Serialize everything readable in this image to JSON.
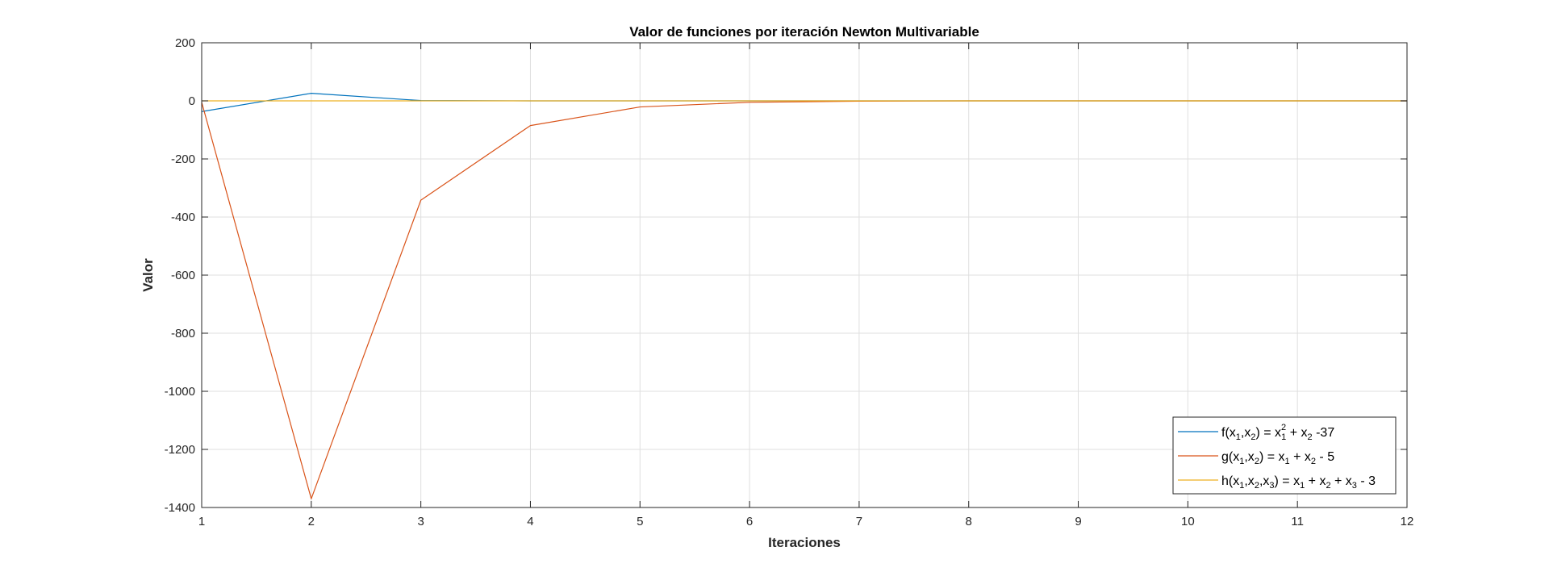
{
  "chart_data": {
    "type": "line",
    "title": "Valor de funciones por iteración Newton Multivariable",
    "xlabel": "Iteraciones",
    "ylabel": "Valor",
    "xlim": [
      1,
      12
    ],
    "ylim": [
      -1400,
      200
    ],
    "x_ticks": [
      1,
      2,
      3,
      4,
      5,
      6,
      7,
      8,
      9,
      10,
      11,
      12
    ],
    "y_ticks": [
      200,
      0,
      -200,
      -400,
      -600,
      -800,
      -1000,
      -1200,
      -1400
    ],
    "grid": true,
    "legend_position": "bottom-right",
    "x": [
      1,
      2,
      3,
      4,
      5,
      6,
      7,
      8,
      9,
      10,
      11,
      12
    ],
    "series": [
      {
        "name": "f(x1,x2) = x1^2 + x2 -37",
        "color": "#0072BD",
        "values": [
          -37,
          26,
          1,
          0,
          0,
          0,
          0,
          0,
          0,
          0,
          0,
          0
        ]
      },
      {
        "name": "g(x1,x2) = x1 + x2 - 5",
        "color": "#D95319",
        "values": [
          -5,
          -1370,
          -342,
          -85,
          -21,
          -5,
          -1,
          0,
          0,
          0,
          0,
          0
        ]
      },
      {
        "name": "h(x1,x2,x3) = x1 + x2 + x3 - 3",
        "color": "#EDB120",
        "values": [
          0,
          0,
          0,
          0,
          0,
          0,
          0,
          0,
          0,
          0,
          0,
          0
        ]
      }
    ]
  }
}
